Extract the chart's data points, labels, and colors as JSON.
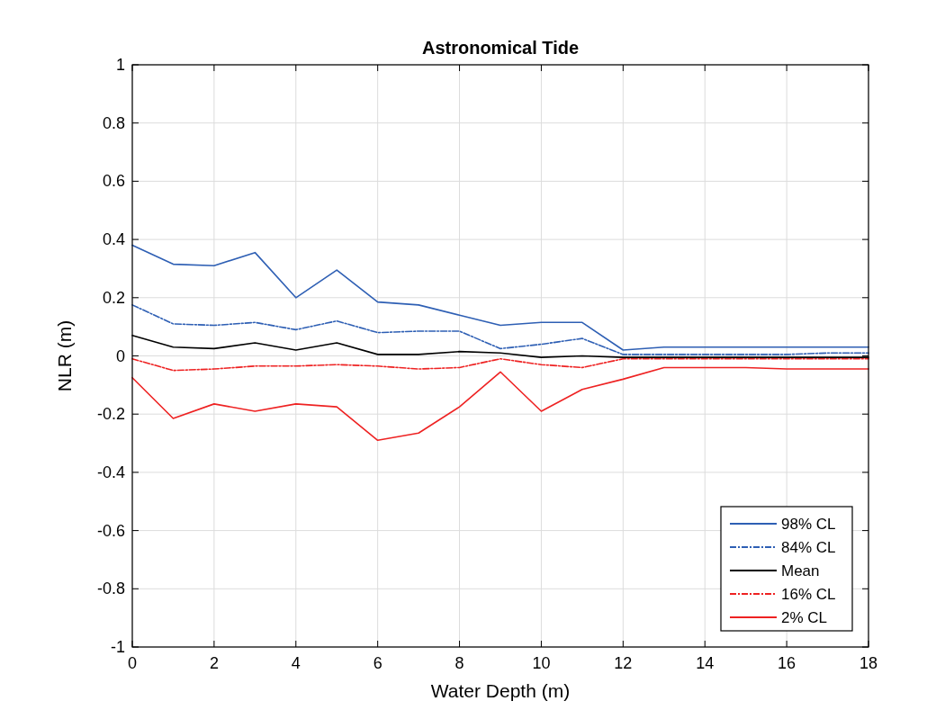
{
  "chart_data": {
    "type": "line",
    "title": "Astronomical Tide",
    "xlabel": "Water Depth (m)",
    "ylabel": "NLR (m)",
    "x": [
      0,
      1,
      2,
      3,
      4,
      5,
      6,
      7,
      8,
      9,
      10,
      11,
      12,
      13,
      14,
      15,
      16,
      17,
      18
    ],
    "xlim": [
      0,
      18
    ],
    "xticks": [
      0,
      2,
      4,
      6,
      8,
      10,
      12,
      14,
      16,
      18
    ],
    "ylim": [
      -1,
      1
    ],
    "yticks": [
      -1,
      -0.8,
      -0.6,
      -0.4,
      -0.2,
      0,
      0.2,
      0.4,
      0.6,
      0.8,
      1
    ],
    "grid": true,
    "legend": "bottom right",
    "marker": "none",
    "series": [
      {
        "name": "98% CL",
        "color": "#2e5fb4",
        "line_style": "solid",
        "values": [
          0.38,
          0.315,
          0.31,
          0.355,
          0.2,
          0.295,
          0.185,
          0.175,
          0.14,
          0.105,
          0.115,
          0.115,
          0.02,
          0.03,
          0.03,
          0.03,
          0.03,
          0.03,
          0.03
        ]
      },
      {
        "name": "84% CL",
        "color": "#2e5fb4",
        "line_style": "dashed",
        "values": [
          0.175,
          0.11,
          0.105,
          0.115,
          0.09,
          0.12,
          0.08,
          0.085,
          0.085,
          0.025,
          0.04,
          0.06,
          0.005,
          0.005,
          0.005,
          0.005,
          0.005,
          0.01,
          0.01
        ]
      },
      {
        "name": "Mean",
        "color": "#000000",
        "line_style": "solid",
        "values": [
          0.07,
          0.03,
          0.025,
          0.045,
          0.02,
          0.045,
          0.005,
          0.005,
          0.015,
          0.01,
          -0.005,
          0,
          -0.005,
          -0.005,
          -0.005,
          -0.005,
          -0.005,
          -0.005,
          -0.005
        ]
      },
      {
        "name": "16% CL",
        "color": "#ee2222",
        "line_style": "dashed",
        "values": [
          -0.01,
          -0.05,
          -0.045,
          -0.035,
          -0.035,
          -0.03,
          -0.035,
          -0.045,
          -0.04,
          -0.01,
          -0.03,
          -0.04,
          -0.01,
          -0.01,
          -0.01,
          -0.01,
          -0.01,
          -0.01,
          -0.01
        ]
      },
      {
        "name": "2% CL",
        "color": "#ee2222",
        "line_style": "solid",
        "values": [
          -0.075,
          -0.215,
          -0.165,
          -0.19,
          -0.165,
          -0.175,
          -0.29,
          -0.265,
          -0.175,
          -0.055,
          -0.19,
          -0.115,
          -0.08,
          -0.04,
          -0.04,
          -0.04,
          -0.045,
          -0.045,
          -0.045
        ]
      }
    ]
  }
}
